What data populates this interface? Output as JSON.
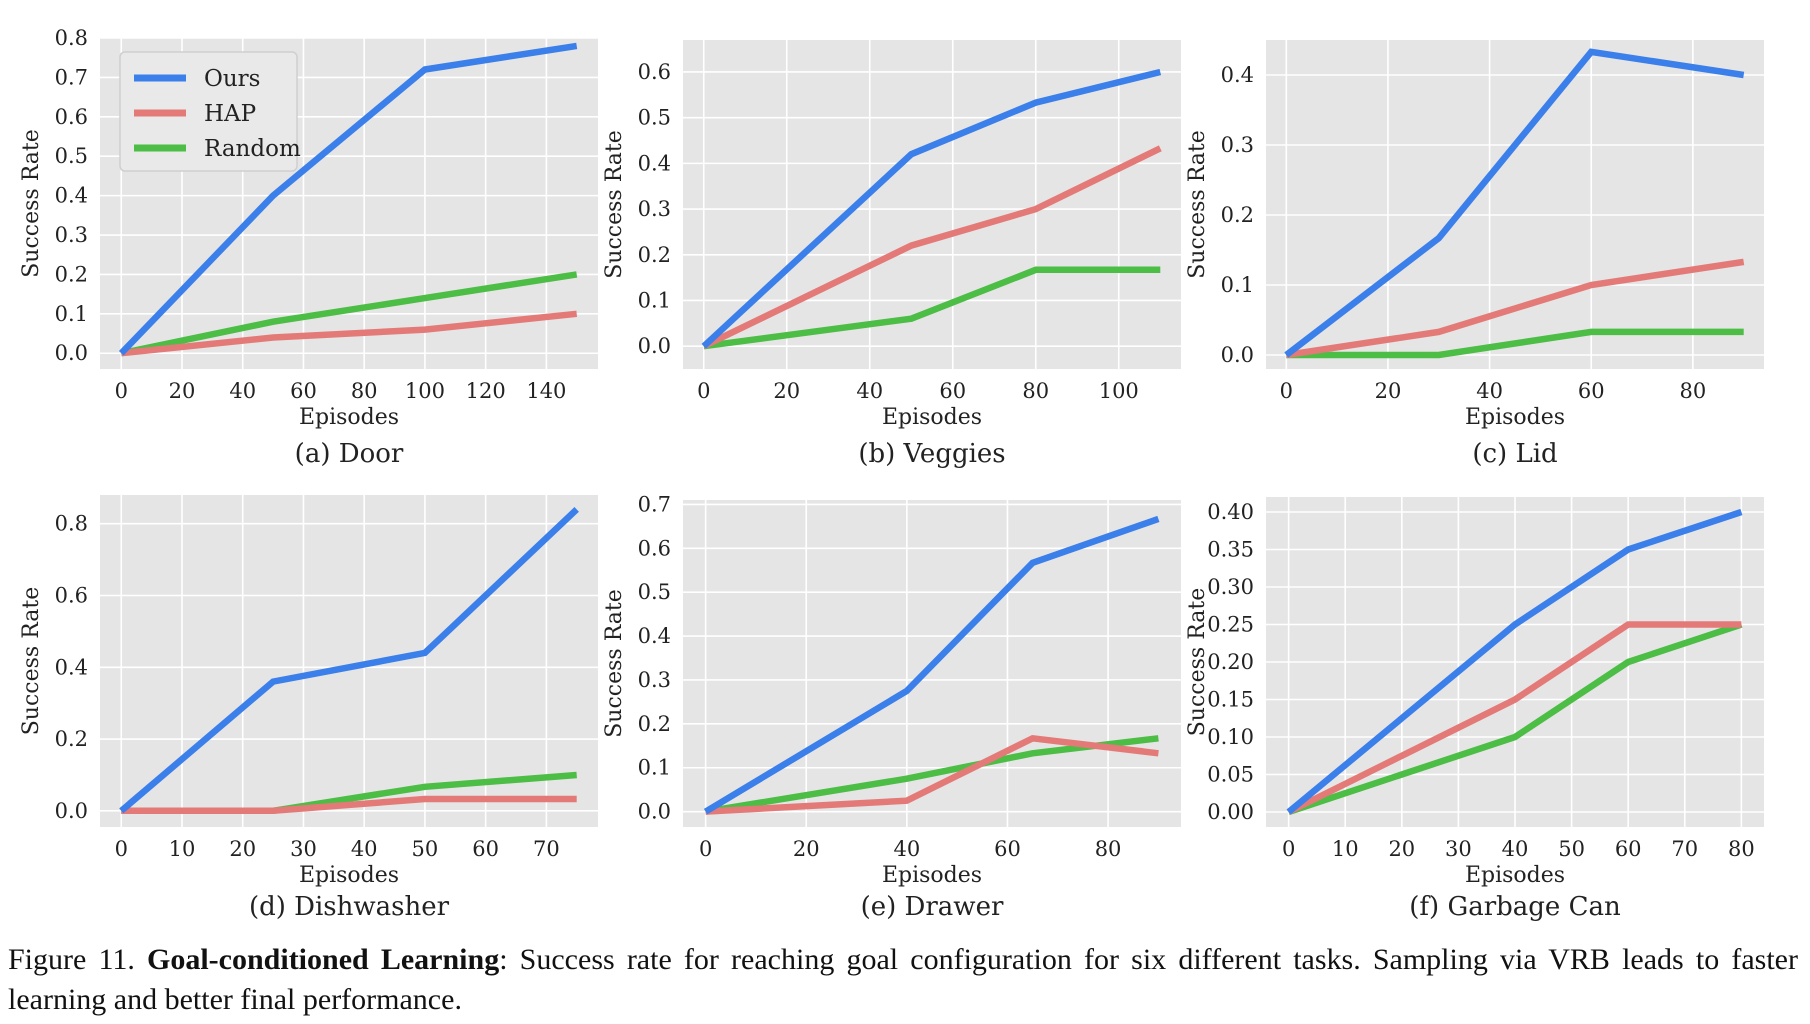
{
  "colors": {
    "Ours": "#3b7fea",
    "HAP": "#e47a78",
    "Random": "#4cbd45",
    "panel_bg": "#e5e5e5",
    "grid": "#ffffff"
  },
  "legend": {
    "location": "upper-left",
    "entries": [
      "Ours",
      "HAP",
      "Random"
    ]
  },
  "chart_data": [
    {
      "type": "line",
      "caption": "(a) Door",
      "xlabel": "Episodes",
      "ylabel": "Success Rate",
      "xlim": [
        -7,
        157
      ],
      "ylim": [
        -0.04,
        0.8
      ],
      "xticks": [
        0,
        20,
        40,
        60,
        80,
        100,
        120,
        140
      ],
      "yticks": [
        0.0,
        0.1,
        0.2,
        0.3,
        0.4,
        0.5,
        0.6,
        0.7,
        0.8
      ],
      "ytick_labels": [
        "0.0",
        "0.1",
        "0.2",
        "0.3",
        "0.4",
        "0.5",
        "0.6",
        "0.7",
        "0.8"
      ],
      "legend_shown": true,
      "series": [
        {
          "name": "Ours",
          "x": [
            0,
            50,
            100,
            150
          ],
          "y": [
            0.0,
            0.4,
            0.72,
            0.78
          ]
        },
        {
          "name": "HAP",
          "x": [
            0,
            50,
            100,
            150
          ],
          "y": [
            0.0,
            0.04,
            0.06,
            0.1
          ]
        },
        {
          "name": "Random",
          "x": [
            0,
            50,
            100,
            150
          ],
          "y": [
            0.0,
            0.08,
            0.14,
            0.2
          ]
        }
      ]
    },
    {
      "type": "line",
      "caption": "(b) Veggies",
      "xlabel": "Episodes",
      "ylabel": "Success Rate",
      "xlim": [
        -5,
        115
      ],
      "ylim": [
        -0.05,
        0.67
      ],
      "xticks": [
        0,
        20,
        40,
        60,
        80,
        100
      ],
      "yticks": [
        0.0,
        0.1,
        0.2,
        0.3,
        0.4,
        0.5,
        0.6
      ],
      "ytick_labels": [
        "0.0",
        "0.1",
        "0.2",
        "0.3",
        "0.4",
        "0.5",
        "0.6"
      ],
      "legend_shown": false,
      "series": [
        {
          "name": "Ours",
          "x": [
            0,
            50,
            80,
            110
          ],
          "y": [
            0.0,
            0.42,
            0.533,
            0.6
          ]
        },
        {
          "name": "HAP",
          "x": [
            0,
            50,
            80,
            110
          ],
          "y": [
            0.0,
            0.22,
            0.3,
            0.433
          ]
        },
        {
          "name": "Random",
          "x": [
            0,
            50,
            80,
            110
          ],
          "y": [
            0.0,
            0.06,
            0.167,
            0.167
          ]
        }
      ]
    },
    {
      "type": "line",
      "caption": "(c) Lid",
      "xlabel": "Episodes",
      "ylabel": "Success Rate",
      "xlim": [
        -4,
        94
      ],
      "ylim": [
        -0.02,
        0.45
      ],
      "xticks": [
        0,
        20,
        40,
        60,
        80
      ],
      "yticks": [
        0.0,
        0.1,
        0.2,
        0.3,
        0.4
      ],
      "ytick_labels": [
        "0.0",
        "0.1",
        "0.2",
        "0.3",
        "0.4"
      ],
      "legend_shown": false,
      "series": [
        {
          "name": "Ours",
          "x": [
            0,
            30,
            60,
            90
          ],
          "y": [
            0.0,
            0.167,
            0.433,
            0.4
          ]
        },
        {
          "name": "HAP",
          "x": [
            0,
            30,
            60,
            90
          ],
          "y": [
            0.0,
            0.033,
            0.1,
            0.133
          ]
        },
        {
          "name": "Random",
          "x": [
            0,
            30,
            60,
            90
          ],
          "y": [
            0.0,
            0.0,
            0.033,
            0.033
          ]
        }
      ]
    },
    {
      "type": "line",
      "caption": "(d) Dishwasher",
      "xlabel": "Episodes",
      "ylabel": "Success Rate",
      "xlim": [
        -3.5,
        78.5
      ],
      "ylim": [
        -0.045,
        0.88
      ],
      "xticks": [
        0,
        10,
        20,
        30,
        40,
        50,
        60,
        70
      ],
      "yticks": [
        0.0,
        0.2,
        0.4,
        0.6,
        0.8
      ],
      "ytick_labels": [
        "0.0",
        "0.2",
        "0.4",
        "0.6",
        "0.8"
      ],
      "legend_shown": false,
      "series": [
        {
          "name": "Ours",
          "x": [
            0,
            25,
            50,
            75
          ],
          "y": [
            0.0,
            0.36,
            0.44,
            0.84
          ]
        },
        {
          "name": "HAP",
          "x": [
            0,
            25,
            50,
            75
          ],
          "y": [
            0.0,
            0.0,
            0.033,
            0.033
          ]
        },
        {
          "name": "Random",
          "x": [
            0,
            25,
            50,
            75
          ],
          "y": [
            0.0,
            0.0,
            0.067,
            0.1
          ]
        }
      ]
    },
    {
      "type": "line",
      "caption": "(e) Drawer",
      "xlabel": "Episodes",
      "ylabel": "Success Rate",
      "xlim": [
        -4.5,
        94.5
      ],
      "ylim": [
        -0.035,
        0.71
      ],
      "xticks": [
        0,
        20,
        40,
        60,
        80
      ],
      "yticks": [
        0.0,
        0.1,
        0.2,
        0.3,
        0.4,
        0.5,
        0.6,
        0.7
      ],
      "ytick_labels": [
        "0.0",
        "0.1",
        "0.2",
        "0.3",
        "0.4",
        "0.5",
        "0.6",
        "0.7"
      ],
      "legend_shown": false,
      "series": [
        {
          "name": "Ours",
          "x": [
            0,
            40,
            65,
            90
          ],
          "y": [
            0.0,
            0.275,
            0.567,
            0.667
          ]
        },
        {
          "name": "HAP",
          "x": [
            0,
            40,
            65,
            90
          ],
          "y": [
            0.0,
            0.025,
            0.167,
            0.133
          ]
        },
        {
          "name": "Random",
          "x": [
            0,
            40,
            65,
            90
          ],
          "y": [
            0.0,
            0.075,
            0.133,
            0.167
          ]
        }
      ]
    },
    {
      "type": "line",
      "caption": "(f) Garbage Can",
      "xlabel": "Episodes",
      "ylabel": "Success Rate",
      "xlim": [
        -4,
        84
      ],
      "ylim": [
        -0.02,
        0.42
      ],
      "xticks": [
        0,
        10,
        20,
        30,
        40,
        50,
        60,
        70,
        80
      ],
      "yticks": [
        0.0,
        0.05,
        0.1,
        0.15,
        0.2,
        0.25,
        0.3,
        0.35,
        0.4
      ],
      "ytick_labels": [
        "0.00",
        "0.05",
        "0.10",
        "0.15",
        "0.20",
        "0.25",
        "0.30",
        "0.35",
        "0.40"
      ],
      "legend_shown": false,
      "series": [
        {
          "name": "Ours",
          "x": [
            0,
            20,
            40,
            60,
            80
          ],
          "y": [
            0.0,
            0.125,
            0.25,
            0.35,
            0.4
          ]
        },
        {
          "name": "HAP",
          "x": [
            0,
            20,
            40,
            60,
            80
          ],
          "y": [
            0.0,
            0.075,
            0.15,
            0.25,
            0.25
          ]
        },
        {
          "name": "Random",
          "x": [
            0,
            20,
            40,
            60,
            80
          ],
          "y": [
            0.0,
            0.05,
            0.1,
            0.2,
            0.25
          ]
        }
      ]
    }
  ],
  "caption": {
    "prefix": "Figure 11. ",
    "bold": "Goal-conditioned Learning",
    "rest": ": Success rate for reaching goal configuration for six different tasks. Sampling via VRB leads to faster learning and better final performance."
  }
}
